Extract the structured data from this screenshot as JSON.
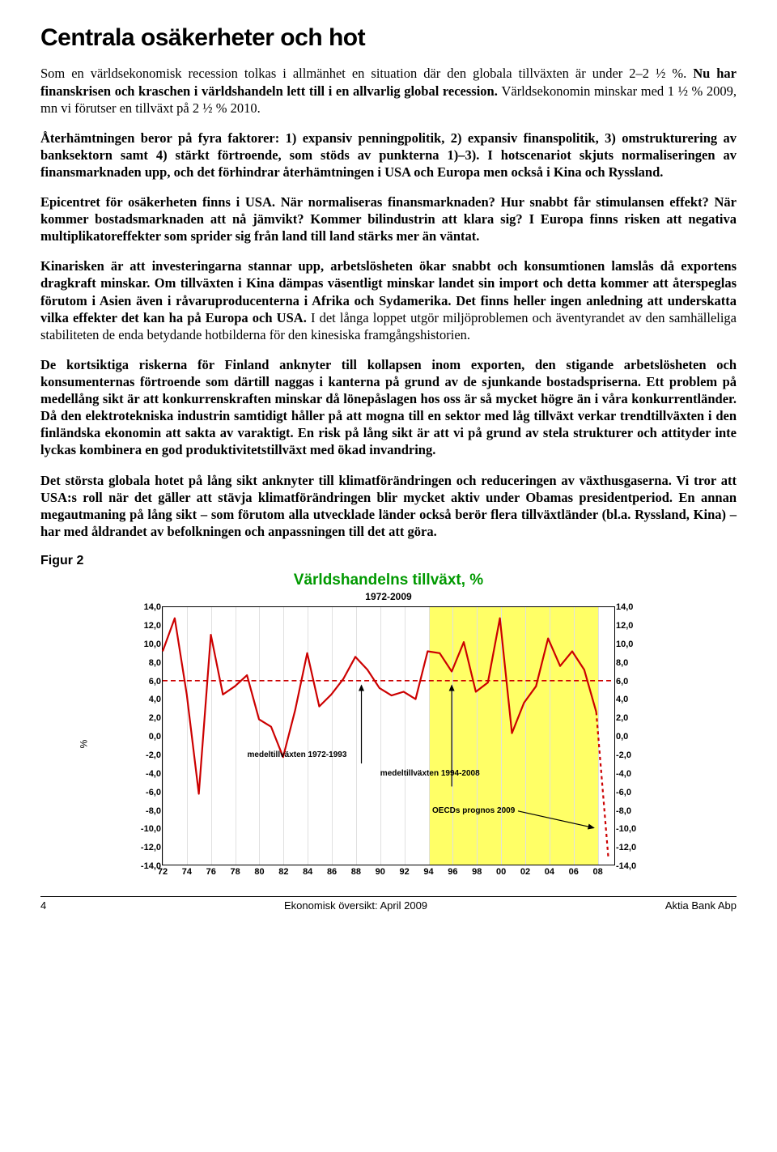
{
  "title": "Centrala osäkerheter och hot",
  "paragraphs": [
    {
      "spans": [
        {
          "t": "Som en världsekonomisk recession tolkas i allmänhet en situation där den globala tillväxten är under 2–2 ½ %. ",
          "b": false
        },
        {
          "t": "Nu har finanskrisen och kraschen i världshandeln lett till i en allvarlig global recession. ",
          "b": true
        },
        {
          "t": "Världsekonomin minskar med 1 ½ % 2009, mn vi förutser en tillväxt på 2 ½ % 2010.",
          "b": false
        }
      ]
    },
    {
      "spans": [
        {
          "t": "Återhämtningen beror på fyra faktorer: 1) expansiv penningpolitik, 2) expansiv finanspolitik, 3) omstrukturering av banksektorn samt 4) stärkt förtroende, som stöds av punkterna 1)–3). I hotscenariot skjuts normaliseringen av finansmarknaden upp, och det förhindrar återhämtningen i USA och Europa men också i Kina och Ryssland.",
          "b": true
        }
      ]
    },
    {
      "spans": [
        {
          "t": "Epicentret för osäkerheten finns i USA. När normaliseras finansmarknaden? Hur snabbt får stimulansen effekt? När kommer bostadsmarknaden att nå jämvikt? Kommer bilindustrin att klara sig?  I Europa finns risken att negativa multiplikatoreffekter som sprider sig från land till land stärks mer än väntat.",
          "b": true
        }
      ]
    },
    {
      "spans": [
        {
          "t": "Kinarisken är att investeringarna stannar upp, arbetslösheten ökar snabbt och konsumtionen lamslås då exportens dragkraft minskar. Om tillväxten i Kina dämpas väsentligt minskar landet sin import och detta kommer att återspeglas förutom i Asien även i råvaruproducenterna i Afrika och Sydamerika. Det finns heller ingen anledning att underskatta vilka effekter det kan ha på Europa och USA.",
          "b": true
        },
        {
          "t": " I det långa loppet utgör miljöproblemen och äventyrandet av den samhälleliga stabiliteten de enda betydande hotbilderna för den kinesiska framgångshistorien.",
          "b": false
        }
      ]
    },
    {
      "spans": [
        {
          "t": "De kortsiktiga riskerna för Finland anknyter till kollapsen inom exporten, den stigande arbetslösheten och konsumenternas förtroende som därtill naggas i kanterna på grund av de sjunkande bostadspriserna. Ett problem på medellång sikt är att konkurrenskraften minskar då lönepåslagen hos oss är så mycket högre än i våra konkurrentländer. Då den elektrotekniska industrin samtidigt håller på att mogna till en sektor med låg tillväxt verkar trendtillväxten i den finländska ekonomin att sakta av varaktigt.  En risk på lång sikt är att vi på grund av stela strukturer och attityder inte lyckas kombinera en god produktivitetstillväxt med ökad invandring.",
          "b": true
        }
      ]
    },
    {
      "spans": [
        {
          "t": "Det största globala hotet på lång sikt anknyter till klimatförändringen och reduceringen av växthusgaserna. Vi tror att USA:s roll när det gäller att stävja klimatförändringen blir mycket aktiv under Obamas presidentperiod. En annan megautmaning på lång sikt – som förutom alla utvecklade länder också berör flera tillväxtländer (bl.a. Ryssland, Kina) – har med åldrandet av befolkningen och anpassningen till det att göra.",
          "b": true
        }
      ]
    }
  ],
  "figure_label": "Figur 2",
  "chart": {
    "title": "Världshandelns tillväxt, %",
    "subtitle": "1972-2009",
    "ylabel": "%",
    "ylim": [
      -14,
      14
    ],
    "ytick_step": 2,
    "x_start": 1972,
    "x_end": 2009.5,
    "xticks": [
      72,
      74,
      76,
      78,
      80,
      82,
      84,
      86,
      88,
      90,
      92,
      94,
      96,
      98,
      0,
      2,
      4,
      6,
      8
    ],
    "highlight_band": {
      "start": 1994,
      "end": 2008
    },
    "mean_line_y": 6.0,
    "annotations": {
      "a1": "medeltillväxten 1972-1993",
      "a2": "medeltillväxten 1994-2008",
      "a3": "OECDs prognos 2009"
    },
    "series": [
      {
        "year": 1972,
        "v": 9.2
      },
      {
        "year": 1973,
        "v": 12.8
      },
      {
        "year": 1974,
        "v": 4.5
      },
      {
        "year": 1975,
        "v": -6.3
      },
      {
        "year": 1976,
        "v": 11.0
      },
      {
        "year": 1977,
        "v": 4.5
      },
      {
        "year": 1978,
        "v": 5.4
      },
      {
        "year": 1979,
        "v": 6.6
      },
      {
        "year": 1980,
        "v": 1.8
      },
      {
        "year": 1981,
        "v": 1.0
      },
      {
        "year": 1982,
        "v": -2.3
      },
      {
        "year": 1983,
        "v": 2.8
      },
      {
        "year": 1984,
        "v": 9.0
      },
      {
        "year": 1985,
        "v": 3.2
      },
      {
        "year": 1986,
        "v": 4.5
      },
      {
        "year": 1987,
        "v": 6.2
      },
      {
        "year": 1988,
        "v": 8.6
      },
      {
        "year": 1989,
        "v": 7.2
      },
      {
        "year": 1990,
        "v": 5.2
      },
      {
        "year": 1991,
        "v": 4.4
      },
      {
        "year": 1992,
        "v": 4.8
      },
      {
        "year": 1993,
        "v": 4.0
      },
      {
        "year": 1994,
        "v": 9.2
      },
      {
        "year": 1995,
        "v": 9.0
      },
      {
        "year": 1996,
        "v": 7.0
      },
      {
        "year": 1997,
        "v": 10.2
      },
      {
        "year": 1998,
        "v": 4.8
      },
      {
        "year": 1999,
        "v": 5.8
      },
      {
        "year": 2000,
        "v": 12.8
      },
      {
        "year": 2001,
        "v": 0.3
      },
      {
        "year": 2002,
        "v": 3.6
      },
      {
        "year": 2003,
        "v": 5.4
      },
      {
        "year": 2004,
        "v": 10.6
      },
      {
        "year": 2005,
        "v": 7.6
      },
      {
        "year": 2006,
        "v": 9.2
      },
      {
        "year": 2007,
        "v": 7.2
      },
      {
        "year": 2008,
        "v": 2.6
      }
    ],
    "forecast": [
      {
        "year": 2008,
        "v": 2.6
      },
      {
        "year": 2009,
        "v": -13.2
      }
    ],
    "colors": {
      "title": "#009900",
      "line": "#cc0000",
      "mean": "#cc0000",
      "highlight": "#ffff66",
      "grid": "#e0e0e0",
      "background": "#ffffff",
      "frame": "#000000"
    }
  },
  "footer": {
    "page": "4",
    "center": "Ekonomisk översikt: April 2009",
    "right": "Aktia Bank Abp"
  }
}
